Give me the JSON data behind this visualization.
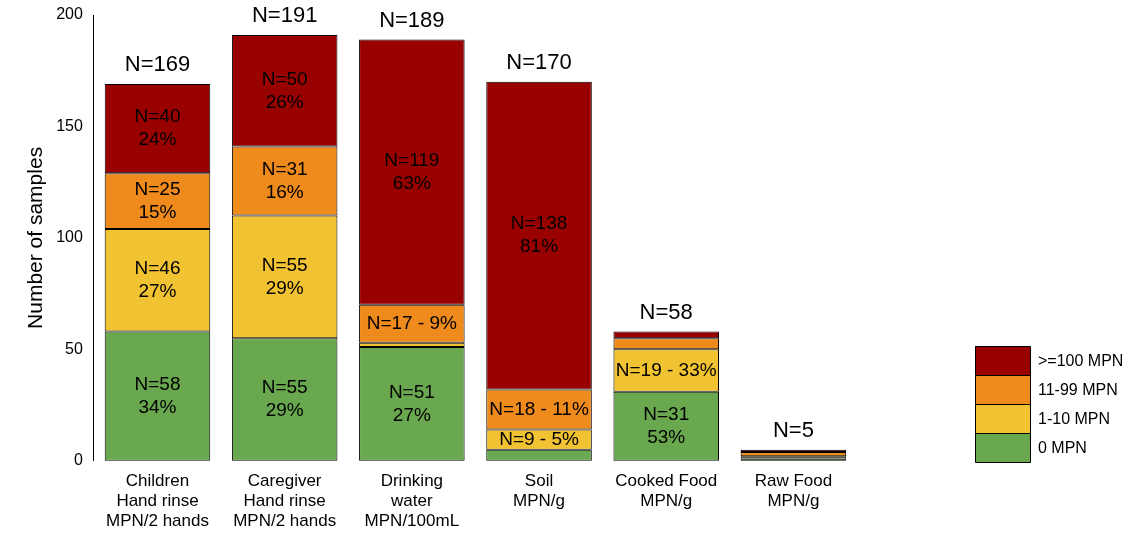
{
  "chart_data": {
    "type": "bar",
    "stacked": true,
    "ylabel": "Number of samples",
    "categories": [
      "Children\nHand rinse\nMPN/2 hands",
      "Caregiver\nHand rinse\nMPN/2 hands",
      "Drinking\nwater\nMPN/100mL",
      "Soil\nMPN/g",
      "Cooked Food\nMPN/g",
      "Raw Food\nMPN/g"
    ],
    "series": [
      {
        "name": "0 MPN",
        "color": "#6aa84f",
        "values": [
          58,
          55,
          51,
          5,
          31,
          1
        ],
        "value_labels": [
          "N=58\n34%",
          "N=55\n29%",
          "N=51\n27%",
          null,
          "N=31\n53%",
          null
        ]
      },
      {
        "name": "1-10 MPN",
        "color": "#f1c232",
        "values": [
          46,
          55,
          2,
          9,
          19,
          1
        ],
        "value_labels": [
          "N=46\n27%",
          "N=55\n29%",
          null,
          "N=9 - 5%",
          "N=19 - 33%",
          null
        ]
      },
      {
        "name": "11-99 MPN",
        "color": "#ef8a1d",
        "values": [
          25,
          31,
          17,
          18,
          5,
          2
        ],
        "value_labels": [
          "N=25\n15%",
          "N=31\n16%",
          "N=17 - 9%",
          "N=18 - 11%",
          null,
          null
        ]
      },
      {
        "name": ">=100 MPN",
        "color": "#990000",
        "values": [
          40,
          50,
          119,
          138,
          3,
          1
        ],
        "value_labels": [
          "N=40\n24%",
          "N=50\n26%",
          "N=119\n63%",
          "N=138\n81%",
          null,
          null
        ]
      }
    ],
    "totals": [
      "N=169",
      "N=191",
      "N=189",
      "N=170",
      "N=58",
      "N=5"
    ],
    "ylim": [
      0,
      200
    ],
    "yticks": [
      0,
      50,
      100,
      150,
      200
    ],
    "grid": false,
    "legend": "bottom right"
  }
}
